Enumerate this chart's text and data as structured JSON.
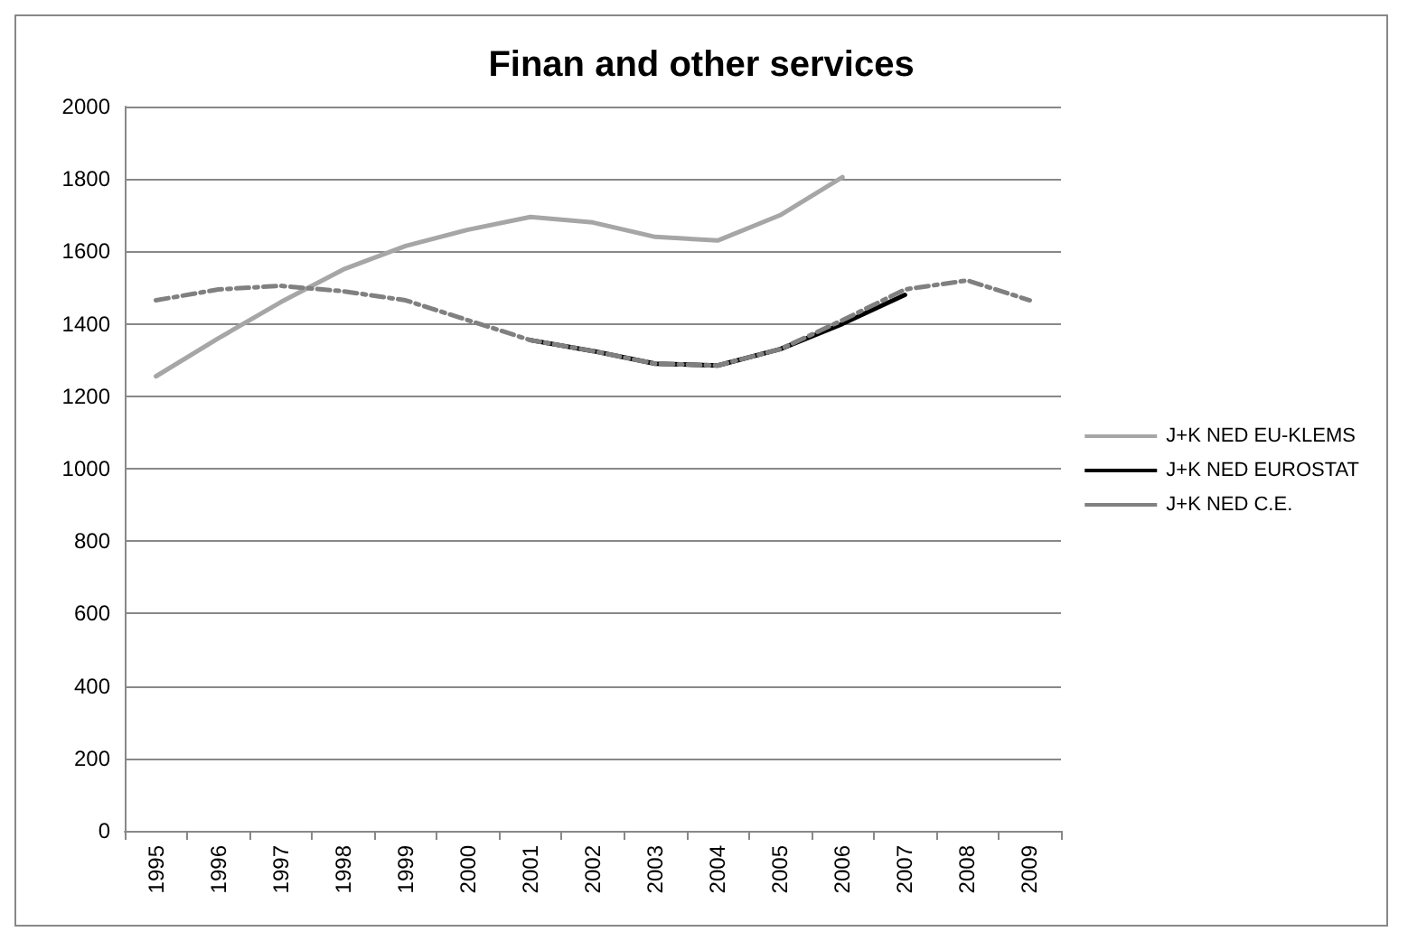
{
  "chart_data": {
    "type": "line",
    "title": "Finan and other services",
    "categories": [
      "1995",
      "1996",
      "1997",
      "1998",
      "1999",
      "2000",
      "2001",
      "2002",
      "2003",
      "2004",
      "2005",
      "2006",
      "2007",
      "2008",
      "2009"
    ],
    "series": [
      {
        "name": "J+K NED EU-KLEMS",
        "color": "#a6a6a6",
        "line_style": "solid",
        "values": [
          1255,
          1360,
          1460,
          1550,
          1615,
          1660,
          1695,
          1680,
          1640,
          1630,
          1700,
          1805,
          null,
          null,
          null
        ]
      },
      {
        "name": "J+K NED EUROSTAT",
        "color": "#000000",
        "line_style": "solid",
        "values": [
          null,
          null,
          null,
          null,
          null,
          null,
          1355,
          1325,
          1290,
          1285,
          1330,
          1400,
          1480,
          null,
          null
        ]
      },
      {
        "name": "J+K NED C.E.",
        "color": "#808080",
        "line_style": "dashed",
        "values": [
          1465,
          1495,
          1505,
          1490,
          1465,
          1410,
          1355,
          1325,
          1290,
          1285,
          1330,
          1410,
          1495,
          1520,
          1465
        ]
      }
    ],
    "ylim": [
      0,
      2000
    ],
    "yticks": [
      0,
      200,
      400,
      600,
      800,
      1000,
      1200,
      1400,
      1600,
      1800,
      2000
    ],
    "grid": "y",
    "legend": "right",
    "marker": "none"
  }
}
